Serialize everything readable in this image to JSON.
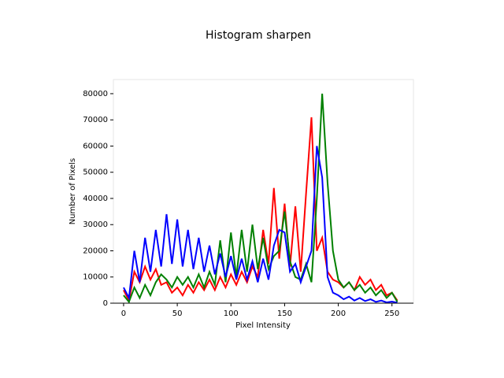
{
  "chart_data": {
    "type": "line",
    "title": "Histogram sharpen",
    "xlabel": "Pixel Intensity",
    "ylabel": "Number of Pixels",
    "x": [
      0,
      5,
      10,
      15,
      20,
      25,
      30,
      35,
      40,
      45,
      50,
      55,
      60,
      65,
      70,
      75,
      80,
      85,
      90,
      95,
      100,
      105,
      110,
      115,
      120,
      125,
      130,
      135,
      140,
      145,
      150,
      155,
      160,
      165,
      170,
      175,
      180,
      185,
      190,
      195,
      200,
      205,
      210,
      215,
      220,
      225,
      230,
      235,
      240,
      245,
      250,
      255
    ],
    "series": [
      {
        "color": "#ff0000",
        "values": [
          5000,
          1000,
          12000,
          8000,
          14000,
          9000,
          13000,
          7000,
          8000,
          4000,
          6000,
          3000,
          7000,
          4000,
          8000,
          5000,
          9000,
          5000,
          10000,
          6000,
          11000,
          7000,
          12000,
          8000,
          14000,
          10000,
          28000,
          15000,
          44000,
          17000,
          38000,
          14000,
          37000,
          12000,
          42000,
          71000,
          20000,
          25000,
          12000,
          9000,
          8000,
          6000,
          8000,
          5000,
          10000,
          7000,
          9000,
          5000,
          7000,
          3000,
          4000,
          1000
        ]
      },
      {
        "color": "#008000",
        "values": [
          3000,
          500,
          6000,
          2000,
          7000,
          3000,
          8000,
          11000,
          9000,
          6000,
          10000,
          7000,
          10000,
          6000,
          11000,
          6000,
          12000,
          7000,
          24000,
          8000,
          27000,
          10000,
          28000,
          12000,
          30000,
          13000,
          25000,
          13000,
          18000,
          20000,
          35000,
          16000,
          10000,
          9000,
          15000,
          8000,
          40000,
          80000,
          46000,
          20000,
          9000,
          6000,
          8000,
          5000,
          7000,
          4000,
          6000,
          3000,
          5000,
          2000,
          4000,
          500
        ]
      },
      {
        "color": "#0000ff",
        "values": [
          6000,
          2000,
          20000,
          8000,
          25000,
          12000,
          28000,
          14000,
          34000,
          15000,
          32000,
          14000,
          28000,
          13000,
          25000,
          12000,
          22000,
          11000,
          19000,
          10000,
          18000,
          9000,
          17000,
          9000,
          16000,
          8000,
          17000,
          9000,
          22000,
          28000,
          27000,
          12000,
          15000,
          8000,
          14000,
          20000,
          60000,
          48000,
          10000,
          4000,
          3000,
          1500,
          2500,
          1000,
          2000,
          800,
          1500,
          500,
          1000,
          300,
          600,
          200
        ]
      }
    ],
    "xlim": [
      -9.5,
      270
    ],
    "xticks": [
      0,
      50,
      100,
      150,
      200,
      250
    ],
    "ylim": [
      0,
      85400
    ],
    "yticks": [
      0,
      10000,
      20000,
      30000,
      40000,
      50000,
      60000,
      70000,
      80000
    ]
  }
}
